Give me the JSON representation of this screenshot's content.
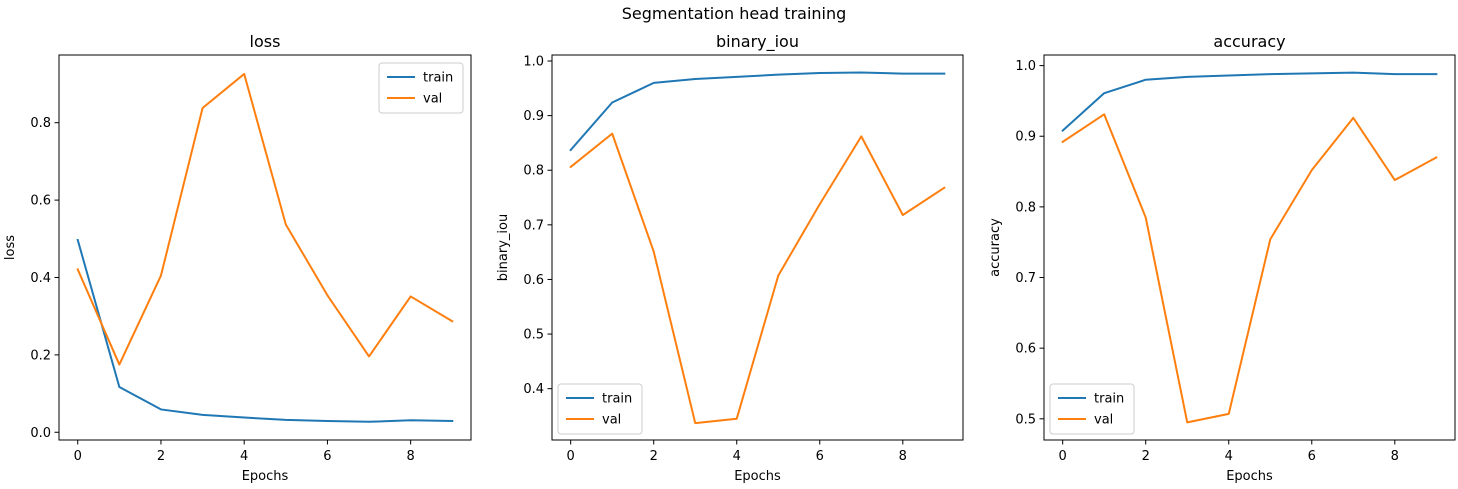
{
  "suptitle": "Segmentation head training",
  "colors": {
    "train": "#1f77b4",
    "val": "#ff7f0e",
    "axis": "#000000",
    "legend_border": "#cccccc"
  },
  "chart_data": [
    {
      "type": "line",
      "title": "loss",
      "xlabel": "Epochs",
      "ylabel": "loss",
      "x": [
        0,
        1,
        2,
        3,
        4,
        5,
        6,
        7,
        8,
        9
      ],
      "xlim": [
        -0.45,
        9.45
      ],
      "ylim": [
        -0.02,
        0.975
      ],
      "xticks": [
        0,
        2,
        4,
        6,
        8
      ],
      "yticks": [
        0.0,
        0.2,
        0.4,
        0.6,
        0.8
      ],
      "ytick_labels": [
        "0.0",
        "0.2",
        "0.4",
        "0.6",
        "0.8"
      ],
      "grid": false,
      "legend_loc": "upper right",
      "series": [
        {
          "name": "train",
          "color": "#1f77b4",
          "values": [
            0.497,
            0.117,
            0.059,
            0.045,
            0.038,
            0.032,
            0.029,
            0.027,
            0.031,
            0.029
          ]
        },
        {
          "name": "val",
          "color": "#ff7f0e",
          "values": [
            0.421,
            0.175,
            0.405,
            0.838,
            0.926,
            0.537,
            0.354,
            0.196,
            0.351,
            0.287
          ]
        }
      ]
    },
    {
      "type": "line",
      "title": "binary_iou",
      "xlabel": "Epochs",
      "ylabel": "binary_iou",
      "x": [
        0,
        1,
        2,
        3,
        4,
        5,
        6,
        7,
        8,
        9
      ],
      "xlim": [
        -0.45,
        9.45
      ],
      "ylim": [
        0.306,
        1.011
      ],
      "xticks": [
        0,
        2,
        4,
        6,
        8
      ],
      "yticks": [
        0.4,
        0.5,
        0.6,
        0.7,
        0.8,
        0.9,
        1.0
      ],
      "ytick_labels": [
        "0.4",
        "0.5",
        "0.6",
        "0.7",
        "0.8",
        "0.9",
        "1.0"
      ],
      "grid": false,
      "legend_loc": "lower left",
      "series": [
        {
          "name": "train",
          "color": "#1f77b4",
          "values": [
            0.837,
            0.924,
            0.96,
            0.967,
            0.971,
            0.975,
            0.978,
            0.979,
            0.977,
            0.977
          ]
        },
        {
          "name": "val",
          "color": "#ff7f0e",
          "values": [
            0.806,
            0.867,
            0.651,
            0.337,
            0.345,
            0.607,
            0.738,
            0.862,
            0.718,
            0.768
          ]
        }
      ]
    },
    {
      "type": "line",
      "title": "accuracy",
      "xlabel": "Epochs",
      "ylabel": "accuracy",
      "x": [
        0,
        1,
        2,
        3,
        4,
        5,
        6,
        7,
        8,
        9
      ],
      "xlim": [
        -0.45,
        9.45
      ],
      "ylim": [
        0.47,
        1.015
      ],
      "xticks": [
        0,
        2,
        4,
        6,
        8
      ],
      "yticks": [
        0.5,
        0.6,
        0.7,
        0.8,
        0.9,
        1.0
      ],
      "ytick_labels": [
        "0.5",
        "0.6",
        "0.7",
        "0.8",
        "0.9",
        "1.0"
      ],
      "grid": false,
      "legend_loc": "lower left",
      "series": [
        {
          "name": "train",
          "color": "#1f77b4",
          "values": [
            0.908,
            0.961,
            0.98,
            0.984,
            0.986,
            0.988,
            0.989,
            0.99,
            0.988,
            0.988
          ]
        },
        {
          "name": "val",
          "color": "#ff7f0e",
          "values": [
            0.892,
            0.931,
            0.785,
            0.495,
            0.507,
            0.754,
            0.852,
            0.926,
            0.838,
            0.87
          ]
        }
      ]
    }
  ]
}
